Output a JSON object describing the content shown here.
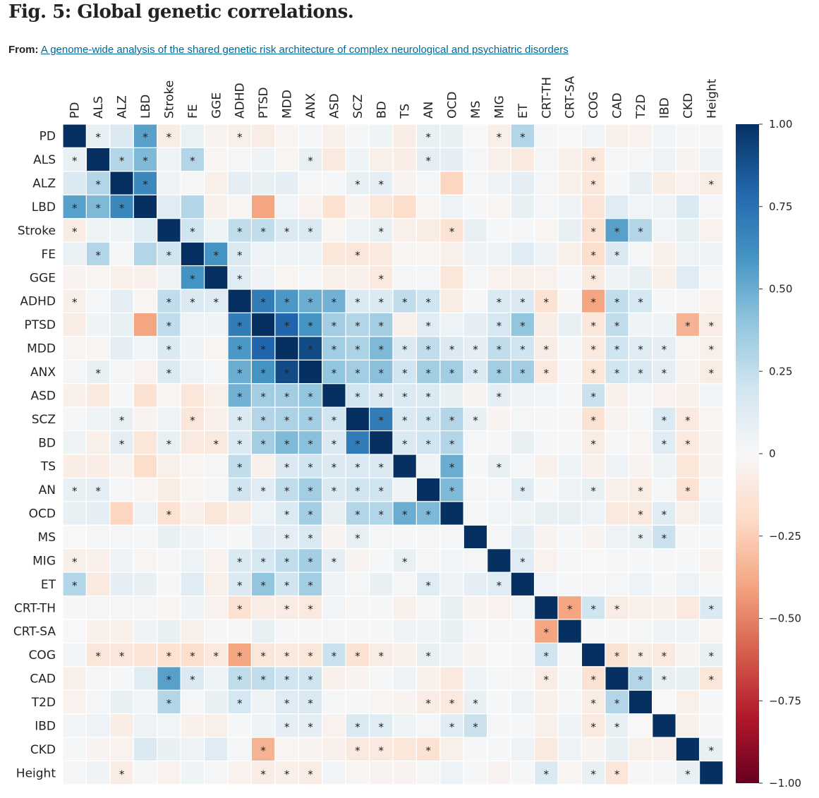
{
  "header": {
    "title": "Fig. 5: Global genetic correlations.",
    "from_label": "From:",
    "article_link": "A genome-wide analysis of the shared genetic risk architecture of complex neurological and psychiatric disorders"
  },
  "chart_data": {
    "type": "heatmap",
    "title": "Global genetic correlations",
    "labels": [
      "PD",
      "ALS",
      "ALZ",
      "LBD",
      "Stroke",
      "FE",
      "GGE",
      "ADHD",
      "PTSD",
      "MDD",
      "ANX",
      "ASD",
      "SCZ",
      "BD",
      "TS",
      "AN",
      "OCD",
      "MS",
      "MIG",
      "ET",
      "CRT-TH",
      "CRT-SA",
      "COG",
      "CAD",
      "T2D",
      "IBD",
      "CKD",
      "Height"
    ],
    "matrix_note": "symmetric; upper triangle rows, row i lists correlations with traits i+1..27; diagonal = 1",
    "upper_values": [
      [
        0.08,
        0.15,
        0.55,
        -0.08,
        0.07,
        -0.03,
        -0.06,
        -0.08,
        -0.02,
        0.02,
        -0.05,
        0.01,
        0.05,
        -0.07,
        0.08,
        0.08,
        0,
        -0.06,
        0.3,
        0.01,
        0,
        0.03,
        -0.05,
        -0.04,
        0.03,
        0.01,
        0.02
      ],
      [
        0.3,
        0.45,
        0.05,
        0.3,
        -0.02,
        0.02,
        0.04,
        -0.02,
        0.08,
        -0.1,
        0.05,
        -0.06,
        -0.07,
        0.1,
        0.1,
        0.02,
        -0.05,
        -0.1,
        0.02,
        -0.05,
        -0.12,
        0.02,
        0.02,
        0.06,
        -0.03,
        0.04
      ],
      [
        0.65,
        0.05,
        0.01,
        -0.06,
        0.1,
        0.08,
        0.1,
        0.02,
        0.01,
        0.08,
        0.1,
        -0.03,
        0.02,
        -0.22,
        0.02,
        0.04,
        0.1,
        0.02,
        -0.06,
        -0.12,
        0.01,
        0.08,
        -0.07,
        -0.04,
        -0.08
      ],
      [
        0.12,
        0.3,
        -0.05,
        -0.02,
        -0.4,
        0.03,
        -0.04,
        -0.15,
        -0.03,
        -0.12,
        -0.18,
        -0.02,
        0.06,
        0.01,
        -0.02,
        0.08,
        0.02,
        0.04,
        -0.13,
        0.12,
        0.03,
        0.06,
        0.15,
        0.02
      ],
      [
        0.2,
        0.05,
        0.25,
        0.25,
        0.15,
        0.15,
        -0.02,
        0.06,
        0.08,
        -0.06,
        -0.08,
        -0.15,
        0.08,
        0.01,
        0.01,
        -0.02,
        0.08,
        -0.15,
        0.55,
        0.3,
        0.03,
        0.08,
        -0.04
      ],
      [
        0.6,
        0.15,
        0.06,
        0.05,
        0.06,
        -0.12,
        -0.12,
        -0.1,
        -0.02,
        -0.02,
        -0.05,
        0.04,
        0.06,
        0.12,
        0.04,
        -0.06,
        -0.18,
        0.15,
        0.02,
        -0.05,
        0.06,
        0.05
      ],
      [
        0.12,
        0.04,
        -0.02,
        0.02,
        -0.06,
        -0.05,
        -0.1,
        0.02,
        0.02,
        -0.12,
        0.02,
        -0.04,
        -0.06,
        -0.04,
        0.01,
        -0.1,
        0.05,
        0.08,
        -0.06,
        0.12,
        0.02
      ],
      [
        0.7,
        0.58,
        0.5,
        0.48,
        0.15,
        0.15,
        0.25,
        0.2,
        -0.07,
        0.01,
        0.15,
        0.15,
        -0.15,
        -0.01,
        -0.4,
        0.25,
        0.18,
        0.01,
        0.02,
        -0.04
      ],
      [
        0.8,
        0.6,
        0.35,
        0.3,
        0.35,
        -0.05,
        0.12,
        0.06,
        0.1,
        0.18,
        0.4,
        -0.08,
        0.08,
        -0.12,
        0.25,
        0.04,
        0.05,
        -0.35,
        -0.08
      ],
      [
        0.9,
        0.35,
        0.32,
        0.45,
        0.15,
        0.25,
        0.15,
        0.1,
        0.25,
        0.2,
        -0.08,
        0.01,
        -0.1,
        0.2,
        0.12,
        0.1,
        -0.02,
        -0.06
      ],
      [
        0.4,
        0.35,
        0.42,
        0.2,
        0.35,
        0.35,
        0.15,
        0.35,
        0.35,
        -0.1,
        0.01,
        -0.12,
        0.2,
        0.15,
        0.1,
        -0.03,
        -0.08
      ],
      [
        0.2,
        0.15,
        0.15,
        0.15,
        0.08,
        -0.03,
        0.1,
        0.04,
        0.03,
        0.02,
        0.22,
        -0.05,
        0.02,
        -0.04,
        -0.05,
        0.03
      ],
      [
        0.7,
        0.15,
        0.2,
        0.3,
        0.08,
        -0.03,
        0.02,
        -0.01,
        -0.01,
        -0.15,
        -0.03,
        0.01,
        0.15,
        -0.1,
        -0.02
      ],
      [
        0.15,
        0.2,
        0.3,
        0.02,
        0.01,
        0.08,
        0.01,
        0.01,
        -0.08,
        0.01,
        -0.02,
        0.12,
        -0.1,
        -0.03
      ],
      [
        0.05,
        0.5,
        0.01,
        0.08,
        0.02,
        -0.05,
        0.05,
        -0.05,
        0.06,
        -0.03,
        0.05,
        -0.12,
        -0.03
      ],
      [
        0.45,
        0.02,
        0.02,
        0.12,
        0.01,
        0.04,
        0.08,
        -0.05,
        -0.08,
        0.02,
        -0.15,
        0.02
      ],
      [
        0.02,
        0.03,
        0.05,
        0.08,
        0.08,
        0.06,
        -0.1,
        -0.1,
        0.12,
        -0.06,
        0.06
      ],
      [
        0.02,
        0.1,
        -0.03,
        0.01,
        -0.03,
        0.06,
        0.08,
        0.22,
        0.01,
        0.01
      ],
      [
        0.12,
        -0.04,
        0.01,
        0,
        0.01,
        0.01,
        0.01,
        0.01,
        -0.03
      ],
      [
        0.03,
        0.01,
        0.02,
        0.02,
        0.06,
        0.01,
        0.06,
        0.01
      ],
      [
        -0.4,
        0.2,
        -0.08,
        -0.06,
        -0.05,
        -0.1,
        0.15
      ],
      [
        0.01,
        0.01,
        0.02,
        0.05,
        0.04,
        -0.02
      ],
      [
        -0.15,
        -0.08,
        -0.1,
        -0.03,
        0.08
      ],
      [
        0.3,
        0.08,
        0.08,
        -0.12
      ],
      [
        0,
        -0.06,
        0.01
      ],
      [
        -0.05,
        0.01
      ],
      [
        0.08
      ]
    ],
    "upper_significant": [
      [
        1,
        0,
        1,
        1,
        0,
        0,
        1,
        0,
        0,
        0,
        0,
        0,
        0,
        0,
        1,
        0,
        0,
        1,
        1,
        0,
        0,
        0,
        0,
        0,
        0,
        0,
        0
      ],
      [
        1,
        1,
        0,
        1,
        0,
        0,
        0,
        0,
        1,
        0,
        0,
        0,
        0,
        1,
        0,
        0,
        0,
        0,
        0,
        0,
        1,
        0,
        0,
        0,
        0,
        0
      ],
      [
        1,
        0,
        0,
        0,
        0,
        0,
        0,
        0,
        0,
        1,
        1,
        0,
        0,
        0,
        0,
        0,
        0,
        0,
        0,
        1,
        0,
        0,
        0,
        0,
        1
      ],
      [
        0,
        0,
        0,
        0,
        0,
        0,
        0,
        0,
        0,
        0,
        0,
        0,
        0,
        0,
        0,
        0,
        0,
        0,
        0,
        0,
        0,
        0,
        0,
        0
      ],
      [
        1,
        0,
        1,
        1,
        1,
        1,
        0,
        0,
        1,
        0,
        0,
        1,
        0,
        0,
        0,
        0,
        0,
        1,
        1,
        1,
        0,
        0,
        0
      ],
      [
        1,
        1,
        0,
        0,
        0,
        0,
        1,
        0,
        0,
        0,
        0,
        0,
        0,
        0,
        0,
        0,
        1,
        1,
        0,
        0,
        0,
        0
      ],
      [
        1,
        0,
        0,
        0,
        0,
        0,
        1,
        0,
        0,
        0,
        0,
        0,
        0,
        0,
        0,
        1,
        0,
        0,
        0,
        0,
        0
      ],
      [
        1,
        1,
        1,
        1,
        1,
        1,
        1,
        1,
        0,
        0,
        1,
        1,
        1,
        0,
        1,
        1,
        1,
        0,
        0,
        0
      ],
      [
        1,
        1,
        1,
        1,
        1,
        0,
        1,
        0,
        0,
        1,
        1,
        0,
        0,
        1,
        1,
        0,
        0,
        1,
        1
      ],
      [
        1,
        1,
        1,
        1,
        1,
        1,
        1,
        1,
        1,
        1,
        1,
        0,
        1,
        1,
        1,
        1,
        0,
        1
      ],
      [
        1,
        1,
        1,
        1,
        1,
        1,
        1,
        1,
        1,
        1,
        0,
        1,
        1,
        1,
        1,
        0,
        1
      ],
      [
        1,
        1,
        1,
        1,
        0,
        0,
        1,
        0,
        0,
        0,
        1,
        0,
        0,
        0,
        0,
        0
      ],
      [
        1,
        1,
        1,
        1,
        1,
        0,
        0,
        0,
        0,
        1,
        0,
        0,
        1,
        1,
        0
      ],
      [
        1,
        1,
        1,
        0,
        0,
        0,
        0,
        0,
        1,
        0,
        0,
        1,
        1,
        0
      ],
      [
        0,
        1,
        0,
        1,
        0,
        0,
        0,
        0,
        0,
        0,
        0,
        0,
        0
      ],
      [
        1,
        0,
        0,
        1,
        0,
        0,
        1,
        0,
        1,
        0,
        1,
        0
      ],
      [
        0,
        0,
        0,
        0,
        0,
        0,
        0,
        1,
        1,
        0,
        0
      ],
      [
        0,
        0,
        0,
        0,
        0,
        0,
        1,
        1,
        0,
        0
      ],
      [
        1,
        0,
        0,
        0,
        0,
        0,
        0,
        0,
        0
      ],
      [
        0,
        0,
        0,
        0,
        0,
        0,
        0,
        0
      ],
      [
        1,
        1,
        1,
        0,
        0,
        0,
        1
      ],
      [
        0,
        0,
        0,
        0,
        0,
        0
      ],
      [
        1,
        1,
        1,
        0,
        1
      ],
      [
        1,
        1,
        0,
        1
      ],
      [
        0,
        0,
        0
      ],
      [
        0,
        0
      ],
      [
        1
      ]
    ],
    "significance_marker": "*",
    "colorbar": {
      "ticks": [
        "1.00",
        "0.75",
        "0.50",
        "0.25",
        "0",
        "−0.25",
        "−0.50",
        "−0.75",
        "−1.00"
      ],
      "range": [
        -1,
        1
      ],
      "colormap": "RdBu"
    },
    "colors": {
      "neg_max": "#67001f",
      "zero": "#f7f7f7",
      "pos_max": "#053061"
    }
  }
}
